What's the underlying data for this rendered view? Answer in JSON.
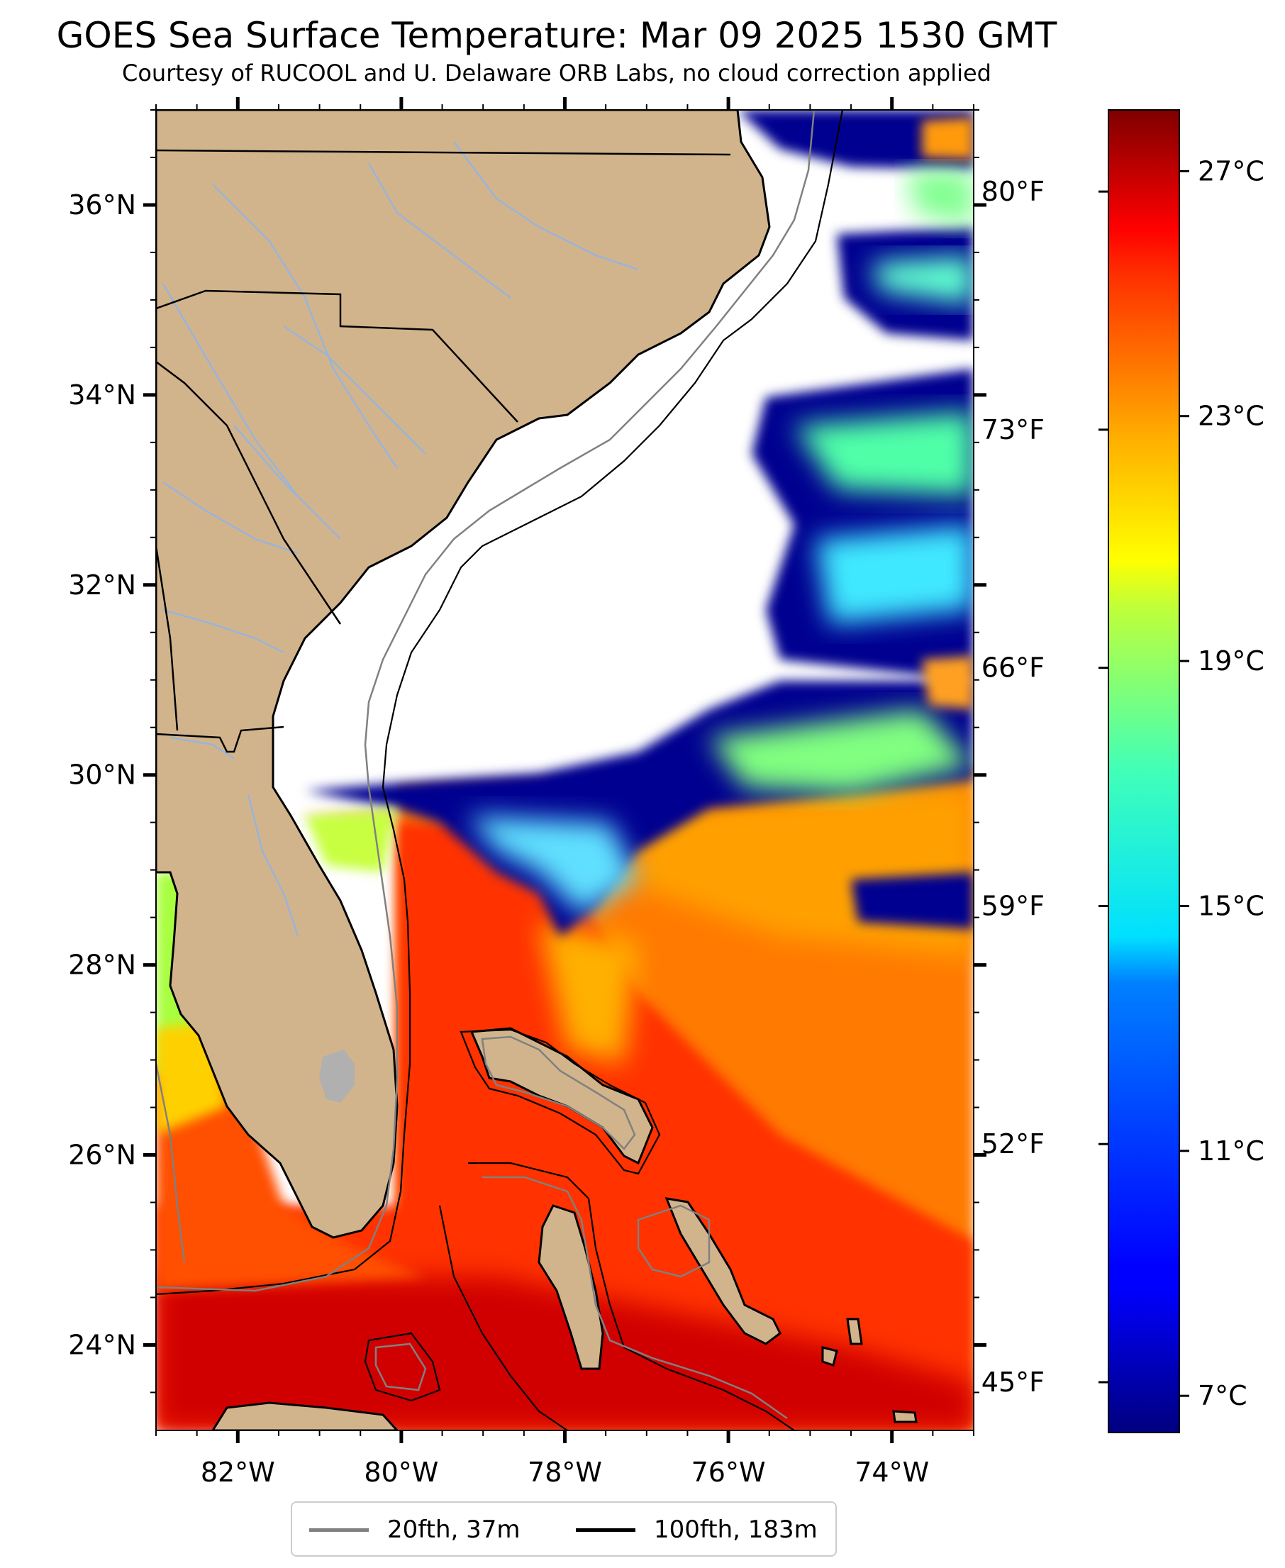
{
  "title": "GOES Sea Surface Temperature: Mar 09 2025 1530 GMT",
  "subtitle": "Courtesy of RUCOOL and U. Delaware ORB Labs, no cloud correction applied",
  "map": {
    "lon_range": [
      -83.0,
      -73.0
    ],
    "lat_range": [
      23.1,
      37.0
    ],
    "lon_ticks": [
      "82°W",
      "80°W",
      "78°W",
      "76°W",
      "74°W"
    ],
    "lon_tick_values": [
      -82,
      -80,
      -78,
      -76,
      -74
    ],
    "lat_ticks": [
      "24°N",
      "26°N",
      "28°N",
      "30°N",
      "32°N",
      "34°N",
      "36°N"
    ],
    "lat_tick_values": [
      24,
      26,
      28,
      30,
      32,
      34,
      36
    ],
    "right_axis_f_ticks": [
      "45°F",
      "52°F",
      "59°F",
      "66°F",
      "73°F",
      "80°F"
    ],
    "right_axis_f_values": [
      45,
      52,
      59,
      66,
      73,
      80
    ],
    "land_color": "#d2b48c",
    "missing_color": "#ffffff"
  },
  "colorbar": {
    "range_c": [
      6.4,
      28.0
    ],
    "ticks": [
      "7°C",
      "11°C",
      "15°C",
      "19°C",
      "23°C",
      "27°C"
    ],
    "tick_values": [
      7,
      11,
      15,
      19,
      23,
      27
    ],
    "colormap": "jet"
  },
  "legend": {
    "items": [
      {
        "label": "20fth, 37m",
        "color": "#808080"
      },
      {
        "label": "100fth, 183m",
        "color": "#000000"
      }
    ]
  }
}
